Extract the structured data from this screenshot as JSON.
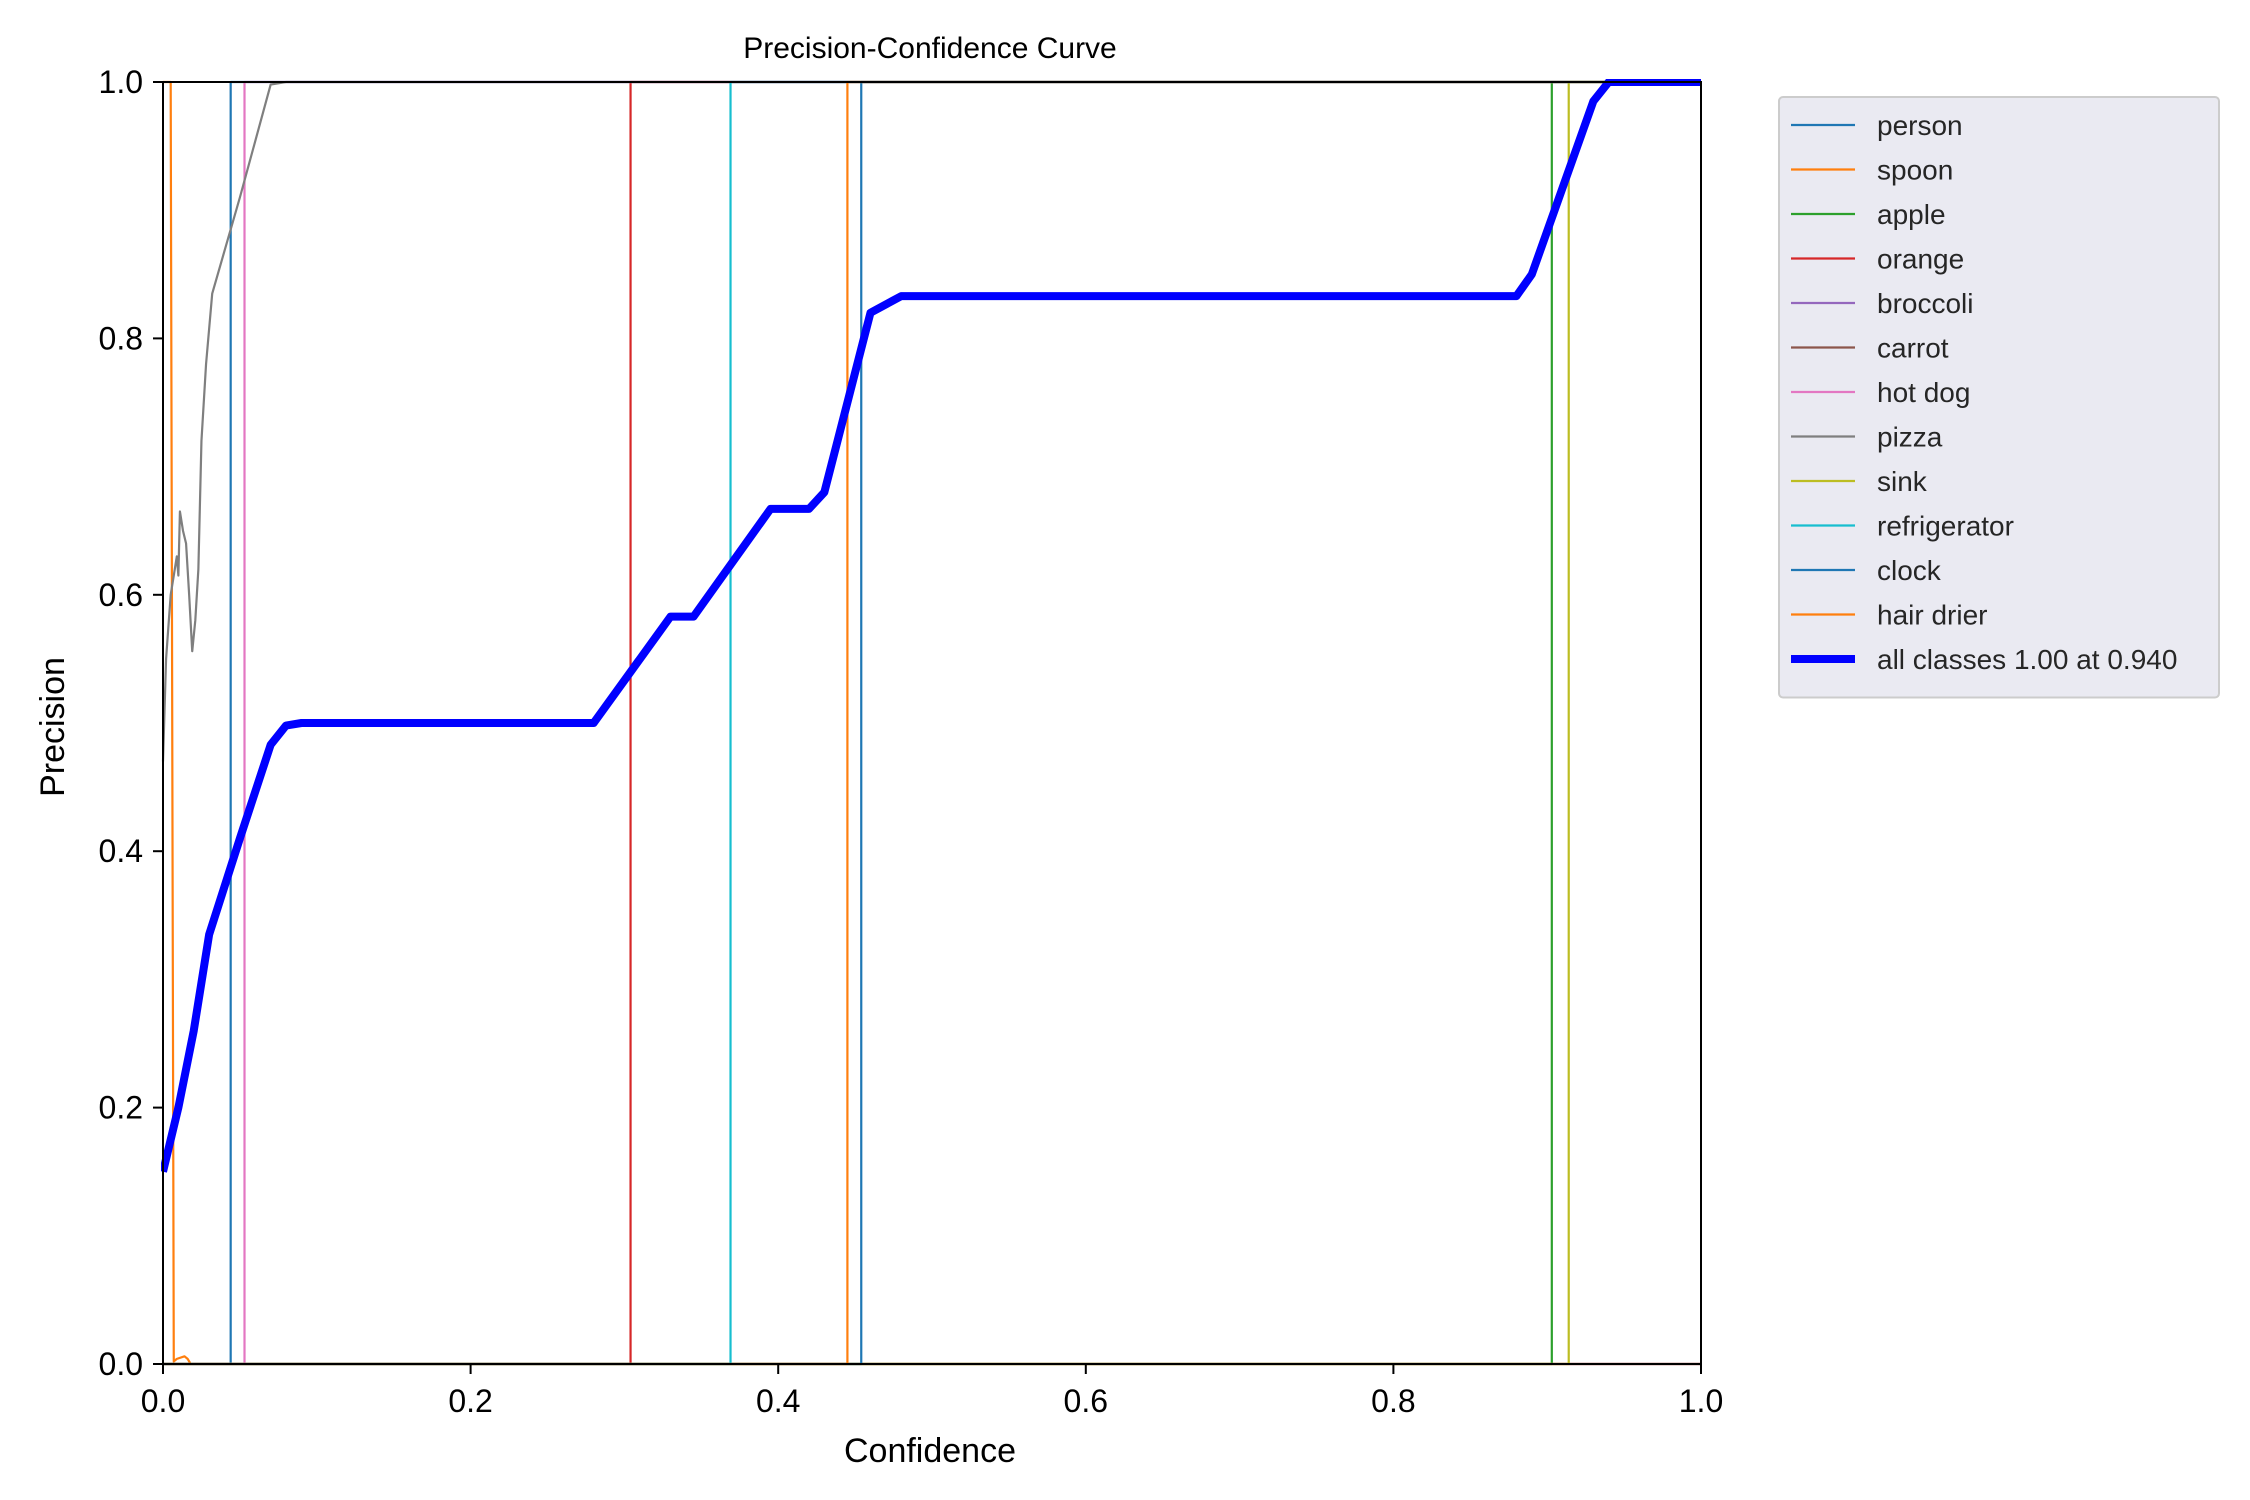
{
  "chart_data": {
    "type": "line",
    "title": "Precision-Confidence Curve",
    "xlabel": "Confidence",
    "ylabel": "Precision",
    "xlim": [
      0,
      1
    ],
    "ylim": [
      0,
      1
    ],
    "xticks": [
      "0.0",
      "0.2",
      "0.4",
      "0.6",
      "0.8",
      "1.0"
    ],
    "yticks": [
      "0.0",
      "0.2",
      "0.4",
      "0.6",
      "0.8",
      "1.0"
    ],
    "grid": false,
    "legend_position": "outside-top-right",
    "series": [
      {
        "name": "person",
        "color": "#1f77b4",
        "width": 1,
        "x": [
          0,
          0.044,
          0.044,
          1
        ],
        "y": [
          0,
          0,
          1,
          1
        ]
      },
      {
        "name": "spoon",
        "color": "#ff7f0e",
        "width": 1,
        "x": [
          0,
          0.005,
          0.007,
          0.009,
          0.014,
          0.016,
          0.018,
          1
        ],
        "y": [
          1,
          1,
          0.002,
          0.004,
          0.006,
          0.004,
          0,
          0
        ]
      },
      {
        "name": "apple",
        "color": "#2ca02c",
        "width": 1,
        "x": [
          0,
          0.903,
          0.903,
          1
        ],
        "y": [
          0,
          0,
          1,
          1
        ]
      },
      {
        "name": "orange",
        "color": "#d62728",
        "width": 1,
        "x": [
          0,
          0.304,
          0.304,
          1
        ],
        "y": [
          0,
          0,
          1,
          1
        ]
      },
      {
        "name": "broccoli",
        "color": "#9467bd",
        "width": 1,
        "x": [
          0,
          1
        ],
        "y": [
          0,
          0
        ]
      },
      {
        "name": "carrot",
        "color": "#8c564b",
        "width": 1,
        "x": [
          0,
          1
        ],
        "y": [
          0,
          0
        ]
      },
      {
        "name": "hot dog",
        "color": "#e377c2",
        "width": 1,
        "x": [
          0,
          0.053,
          0.053,
          1
        ],
        "y": [
          0,
          0,
          1,
          1
        ]
      },
      {
        "name": "pizza",
        "color": "#7f7f7f",
        "width": 1,
        "x": [
          0,
          0.002,
          0.005,
          0.009,
          0.01,
          0.011,
          0.013,
          0.015,
          0.017,
          0.019,
          0.021,
          0.023,
          0.025,
          0.028,
          0.032,
          0.05,
          0.07,
          0.08,
          1
        ],
        "y": [
          0.47,
          0.55,
          0.6,
          0.63,
          0.615,
          0.665,
          0.65,
          0.64,
          0.6,
          0.556,
          0.58,
          0.62,
          0.72,
          0.78,
          0.835,
          0.91,
          0.998,
          1,
          1
        ]
      },
      {
        "name": "sink",
        "color": "#bcbd22",
        "width": 1,
        "x": [
          0,
          0.914,
          0.914,
          1
        ],
        "y": [
          0,
          0,
          1,
          1
        ]
      },
      {
        "name": "refrigerator",
        "color": "#17becf",
        "width": 1,
        "x": [
          0,
          0.369,
          0.369,
          1
        ],
        "y": [
          0,
          0,
          1,
          1
        ]
      },
      {
        "name": "clock",
        "color": "#1f77b4",
        "width": 1,
        "x": [
          0,
          0.454,
          0.454,
          1
        ],
        "y": [
          0,
          0,
          1,
          1
        ]
      },
      {
        "name": "hair drier",
        "color": "#ff7f0e",
        "width": 1,
        "x": [
          0,
          0.445,
          0.445,
          1
        ],
        "y": [
          0,
          0,
          1,
          1
        ]
      },
      {
        "name": "all classes 1.00 at 0.940",
        "color": "#0000ff",
        "width": 3,
        "x": [
          0,
          0.01,
          0.02,
          0.03,
          0.05,
          0.07,
          0.08,
          0.09,
          0.28,
          0.33,
          0.345,
          0.395,
          0.42,
          0.43,
          0.46,
          0.48,
          0.88,
          0.89,
          0.93,
          0.94,
          1
        ],
        "y": [
          0.15,
          0.2,
          0.26,
          0.335,
          0.41,
          0.483,
          0.498,
          0.5,
          0.5,
          0.583,
          0.583,
          0.667,
          0.667,
          0.68,
          0.82,
          0.833,
          0.833,
          0.85,
          0.985,
          1,
          1
        ]
      }
    ]
  }
}
